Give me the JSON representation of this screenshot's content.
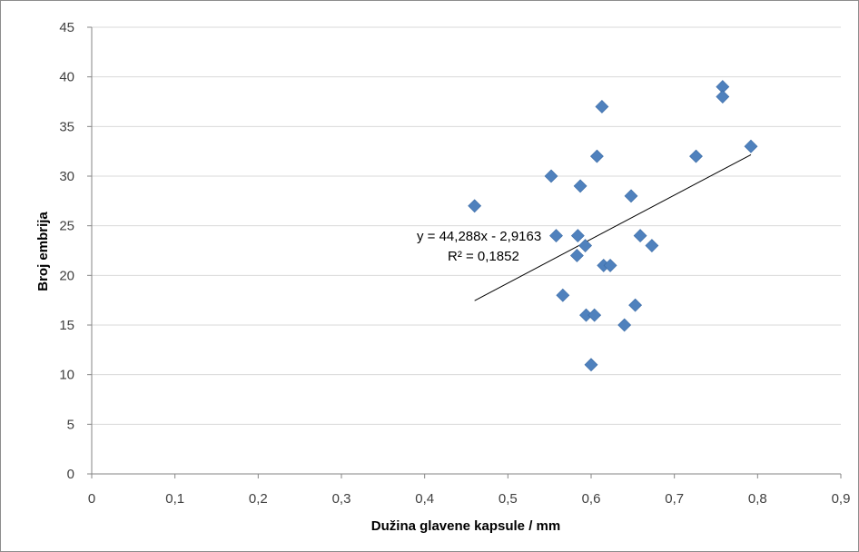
{
  "chart_data": {
    "type": "scatter",
    "xlabel": "Dužina glavene kapsule / mm",
    "ylabel": "Broj embrija",
    "xlim": [
      0,
      0.9
    ],
    "ylim": [
      0,
      45
    ],
    "x_ticks": [
      0,
      0.1,
      0.2,
      0.3,
      0.4,
      0.5,
      0.6,
      0.7,
      0.8,
      0.9
    ],
    "x_tick_labels": [
      "0",
      "0,1",
      "0,2",
      "0,3",
      "0,4",
      "0,5",
      "0,6",
      "0,7",
      "0,8",
      "0,9"
    ],
    "y_ticks": [
      0,
      5,
      10,
      15,
      20,
      25,
      30,
      35,
      40,
      45
    ],
    "y_tick_labels": [
      "0",
      "5",
      "10",
      "15",
      "20",
      "25",
      "30",
      "35",
      "40",
      "45"
    ],
    "grid": true,
    "legend": "none",
    "marker_color": "#4f81bd",
    "series": [
      {
        "points": [
          {
            "x": 0.46,
            "y": 27
          },
          {
            "x": 0.552,
            "y": 30
          },
          {
            "x": 0.558,
            "y": 24
          },
          {
            "x": 0.566,
            "y": 18
          },
          {
            "x": 0.583,
            "y": 22
          },
          {
            "x": 0.584,
            "y": 24
          },
          {
            "x": 0.587,
            "y": 29
          },
          {
            "x": 0.593,
            "y": 23
          },
          {
            "x": 0.594,
            "y": 16
          },
          {
            "x": 0.6,
            "y": 11
          },
          {
            "x": 0.604,
            "y": 16
          },
          {
            "x": 0.607,
            "y": 32
          },
          {
            "x": 0.613,
            "y": 37
          },
          {
            "x": 0.615,
            "y": 21
          },
          {
            "x": 0.623,
            "y": 21
          },
          {
            "x": 0.64,
            "y": 15
          },
          {
            "x": 0.648,
            "y": 28
          },
          {
            "x": 0.653,
            "y": 17
          },
          {
            "x": 0.659,
            "y": 24
          },
          {
            "x": 0.673,
            "y": 23
          },
          {
            "x": 0.726,
            "y": 32
          },
          {
            "x": 0.758,
            "y": 39
          },
          {
            "x": 0.758,
            "y": 38
          },
          {
            "x": 0.792,
            "y": 33
          }
        ]
      }
    ],
    "trendline": {
      "slope": 44.288,
      "intercept": -2.9163,
      "x_range": [
        0.46,
        0.792
      ],
      "equation": "y = 44,288x - 2,9163",
      "r_squared": "R² = 0,1852"
    }
  }
}
